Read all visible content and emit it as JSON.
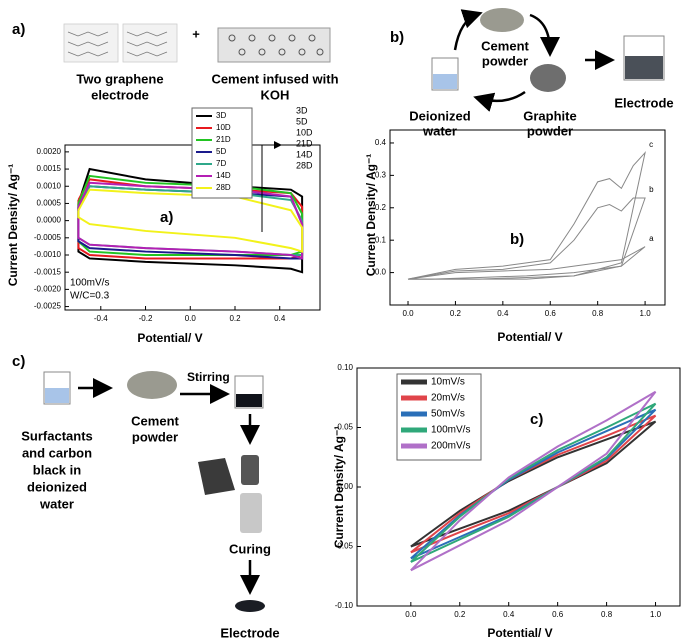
{
  "diagrams": {
    "a": {
      "label": "a)",
      "plus": "+",
      "left_caption": [
        "Two graphene",
        "electrode"
      ],
      "right_caption": [
        "Cement infused with",
        "KOH"
      ]
    },
    "b": {
      "label": "b)",
      "cement": [
        "Cement",
        "powder"
      ],
      "water": [
        "Deionized",
        "water"
      ],
      "graphite": [
        "Graphite",
        "powder"
      ],
      "electrode": "Electrode"
    },
    "c": {
      "label": "c)",
      "surfactants": [
        "Surfactants",
        "and carbon",
        "black in",
        "deionized",
        "water"
      ],
      "cement": [
        "Cement",
        "powder"
      ],
      "stirring": "Stirring",
      "curing": "Curing",
      "electrode": "Electrode"
    }
  },
  "chart_data": [
    {
      "type": "line",
      "xlabel": "Potential/ V",
      "ylabel": "Current Density/ Ag⁻¹",
      "annotations": [
        "a)",
        "100mV/s",
        "W/C=0.3"
      ],
      "arrow_labels": [
        "3D",
        "5D",
        "10D",
        "21D",
        "14D",
        "28D"
      ],
      "legend": "top",
      "xlim": [
        -0.56,
        0.58
      ],
      "ylim": [
        -0.0026,
        0.0022
      ],
      "xticks": [
        -0.4,
        -0.2,
        {
          "value": 0,
          "label": "0.0"
        },
        0.2,
        0.4
      ],
      "yticks": [
        {
          "value": -0.0025,
          "label": "-0.0025"
        },
        {
          "value": -0.002,
          "label": "-0.0020"
        },
        {
          "value": -0.0015,
          "label": "-0.0015"
        },
        {
          "value": -0.001,
          "label": "-0.0010"
        },
        {
          "value": -0.0005,
          "label": "-0.0005"
        },
        {
          "value": 0,
          "label": "0.0000"
        },
        0.0005,
        {
          "value": 0.001,
          "label": "0.0010"
        },
        0.0015,
        {
          "value": 0.002,
          "label": "0.0020"
        }
      ],
      "x": [
        -0.5,
        -0.45,
        -0.2,
        0.2,
        0.45,
        0.5,
        0.5,
        0.45,
        0.2,
        -0.2,
        -0.45,
        -0.5,
        -0.5
      ],
      "series": [
        {
          "name": "3D",
          "color": "#000000",
          "values": [
            0.0005,
            0.0015,
            0.0012,
            0.001,
            0.0009,
            0.0007,
            -0.0015,
            -0.0014,
            -0.0013,
            -0.0012,
            -0.0011,
            -0.0009,
            0.0005
          ]
        },
        {
          "name": "10D",
          "color": "#e8191f",
          "values": [
            0.0006,
            0.0012,
            0.001,
            0.0009,
            0.0008,
            0.0004,
            -0.001,
            -0.0011,
            -0.0011,
            -0.0011,
            -0.001,
            -0.0008,
            0.0006
          ]
        },
        {
          "name": "21D",
          "color": "#22c422",
          "values": [
            0.0005,
            0.0013,
            0.0011,
            0.001,
            0.0008,
            0.0002,
            -0.0009,
            -0.001,
            -0.001,
            -0.001,
            -0.0009,
            -0.0006,
            0.0005
          ]
        },
        {
          "name": "5D",
          "color": "#1a1a8c",
          "values": [
            0.0004,
            0.001,
            0.0009,
            0.0008,
            0.0007,
            -0.0001,
            -0.0011,
            -0.0011,
            -0.001,
            -0.0009,
            -0.0008,
            -0.0006,
            0.0004
          ]
        },
        {
          "name": "7D",
          "color": "#2fa88a",
          "values": [
            0.0004,
            0.001,
            0.0009,
            0.0008,
            0.0006,
            0,
            -0.001,
            -0.001,
            -0.0009,
            -0.0008,
            -0.0007,
            -0.0005,
            0.0004
          ]
        },
        {
          "name": "14D",
          "color": "#b41fb4",
          "values": [
            0.0004,
            0.0011,
            0.001,
            0.0009,
            0.0007,
            -0.0001,
            -0.0011,
            -0.001,
            -0.0009,
            -0.0008,
            -0.0007,
            -0.0005,
            0.0004
          ]
        },
        {
          "name": "28D",
          "color": "#f2f21a",
          "values": [
            0.0003,
            0.0009,
            0.0008,
            0.0007,
            0.0003,
            -0.0002,
            -0.0009,
            -0.0008,
            -0.0005,
            -0.0003,
            -0.0001,
            0.0001,
            0.0003
          ]
        }
      ]
    },
    {
      "type": "line",
      "xlabel": "Potential/ V",
      "ylabel": "Current Density/ Ag⁻¹",
      "annotations": [
        "b)"
      ],
      "legend": "line end",
      "xlim": [
        -0.076,
        1.084
      ],
      "ylim": [
        -0.1,
        0.44
      ],
      "xticks": [
        {
          "value": 0,
          "label": "0.0"
        },
        0.2,
        0.4,
        0.6,
        0.8,
        {
          "value": 1,
          "label": "1.0"
        }
      ],
      "yticks": [
        {
          "value": 0,
          "label": "0.0"
        },
        0.1,
        0.2,
        0.3,
        0.4
      ],
      "x": [
        0,
        0.2,
        0.4,
        0.6,
        0.7,
        0.8,
        0.85,
        0.9,
        0.95,
        1.0,
        0.9,
        0.7,
        0.5,
        0.3,
        0.1,
        0
      ],
      "series": [
        {
          "name": "c",
          "color": "#888888",
          "values": [
            -0.02,
            0.01,
            0.02,
            0.04,
            0.15,
            0.28,
            0.29,
            0.26,
            0.33,
            0.37,
            0.03,
            -0.01,
            -0.02,
            -0.02,
            -0.02,
            -0.02
          ]
        },
        {
          "name": "b",
          "color": "#888888",
          "values": [
            -0.02,
            0.005,
            0.01,
            0.03,
            0.1,
            0.2,
            0.21,
            0.19,
            0.23,
            0.23,
            0.02,
            -0.01,
            -0.015,
            -0.02,
            -0.02,
            -0.02
          ]
        },
        {
          "name": "a",
          "color": "#888888",
          "values": [
            -0.02,
            0,
            0.005,
            0.01,
            0.02,
            0.03,
            0.035,
            0.04,
            0.06,
            0.08,
            0.02,
            0,
            -0.01,
            -0.015,
            -0.02,
            -0.02
          ]
        }
      ]
    },
    {
      "type": "line",
      "xlabel": "Potential/ V",
      "ylabel": "Current Density/ Ag⁻¹",
      "annotations": [
        "c)"
      ],
      "legend": "upper left",
      "xlim": [
        -0.22,
        1.1
      ],
      "ylim": [
        -0.1,
        0.1
      ],
      "xticks": [
        {
          "value": 0,
          "label": "0.0"
        },
        0.2,
        0.4,
        0.6,
        0.8,
        {
          "value": 1,
          "label": "1.0"
        }
      ],
      "yticks": [
        {
          "value": -0.1,
          "label": "-0.10"
        },
        -0.05,
        {
          "value": 0,
          "label": "0.00"
        },
        0.05,
        {
          "value": 0.1,
          "label": "0.10"
        }
      ],
      "x": [
        0,
        0.2,
        0.4,
        0.6,
        0.8,
        1.0,
        1.0,
        0.8,
        0.6,
        0.4,
        0.2,
        0
      ],
      "series": [
        {
          "name": "10mV/s",
          "color": "#333333",
          "values": [
            -0.05,
            -0.02,
            0.005,
            0.025,
            0.04,
            0.055,
            0.055,
            0.02,
            0,
            -0.02,
            -0.035,
            -0.05
          ]
        },
        {
          "name": "20mV/s",
          "color": "#e0444a",
          "values": [
            -0.055,
            -0.022,
            0.006,
            0.027,
            0.043,
            0.06,
            0.06,
            0.022,
            0,
            -0.022,
            -0.038,
            -0.055
          ]
        },
        {
          "name": "50mV/s",
          "color": "#2a6fb8",
          "values": [
            -0.06,
            -0.024,
            0.006,
            0.029,
            0.047,
            0.065,
            0.065,
            0.024,
            0,
            -0.024,
            -0.042,
            -0.06
          ]
        },
        {
          "name": "100mV/s",
          "color": "#2fa87a",
          "values": [
            -0.063,
            -0.025,
            0.007,
            0.031,
            0.05,
            0.07,
            0.07,
            0.025,
            0,
            -0.025,
            -0.044,
            -0.063
          ]
        },
        {
          "name": "200mV/s",
          "color": "#b070c8",
          "values": [
            -0.07,
            -0.028,
            0.008,
            0.034,
            0.056,
            0.08,
            0.08,
            0.028,
            0,
            -0.028,
            -0.049,
            -0.07
          ]
        }
      ]
    }
  ]
}
